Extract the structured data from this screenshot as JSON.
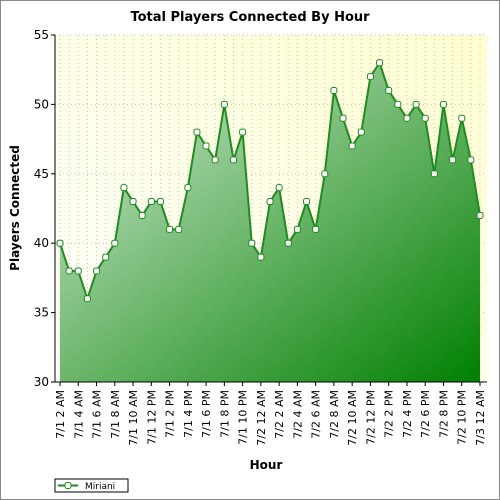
{
  "chart_data": {
    "type": "area",
    "title": "Total Players Connected By Hour",
    "xlabel": "Hour",
    "ylabel": "Players Connected",
    "categories": [
      "7/1 2 AM",
      null,
      "7/1 4 AM",
      null,
      "7/1 6 AM",
      null,
      "7/1 8 AM",
      null,
      "7/1 10 AM",
      null,
      "7/1 12 PM",
      null,
      "7/1 2 PM",
      null,
      "7/1 4 PM",
      null,
      "7/1 6 PM",
      null,
      "7/1 8 PM",
      null,
      "7/1 10 PM",
      null,
      "7/2 12 AM",
      null,
      "7/2 2 AM",
      null,
      "7/2 4 AM",
      null,
      "7/2 6 AM",
      null,
      "7/2 8 AM",
      null,
      "7/2 10 AM",
      null,
      "7/2 12 PM",
      null,
      "7/2 2 PM",
      null,
      "7/2 4 PM",
      null,
      "7/2 6 PM",
      null,
      "7/2 8 PM",
      null,
      "7/2 10 PM",
      null,
      "7/3 12 AM"
    ],
    "series": [
      {
        "name": "Miriani",
        "color": "#1e8c1e",
        "values": [
          40,
          38,
          38,
          36,
          38,
          39,
          40,
          44,
          43,
          42,
          43,
          43,
          41,
          41,
          44,
          48,
          47,
          46,
          50,
          46,
          48,
          40,
          39,
          43,
          44,
          40,
          41,
          43,
          41,
          45,
          51,
          49,
          47,
          48,
          52,
          53,
          51,
          50,
          49,
          50,
          49,
          45,
          50,
          46,
          49,
          46,
          42
        ]
      }
    ],
    "ylim": [
      30,
      55
    ],
    "yticks": [
      30,
      35,
      40,
      45,
      50,
      55
    ],
    "grid": true,
    "legend": "bottom-left"
  }
}
